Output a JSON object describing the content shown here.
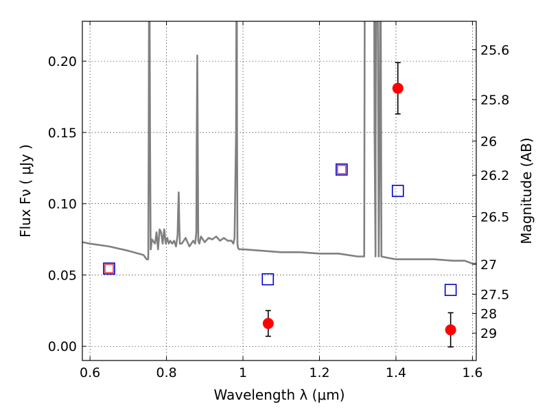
{
  "chart_data": {
    "type": "scatter",
    "title": "",
    "xlabel": "Wavelength  λ (μm)",
    "ylabel": "Flux  Fν  ( μJy )",
    "ylabel_right": "Magnitude (AB)",
    "xlim": [
      0.58,
      1.61
    ],
    "ylim": [
      -0.01,
      0.228
    ],
    "xticks": [
      0.6,
      0.8,
      1.0,
      1.2,
      1.4,
      1.6
    ],
    "xtick_labels": [
      "0.6",
      "0.8",
      "1",
      "1.2",
      "1.4",
      "1.6"
    ],
    "yticks": [
      0.0,
      0.05,
      0.1,
      0.15,
      0.2
    ],
    "ytick_labels": [
      "0.00",
      "0.05",
      "0.10",
      "0.15",
      "0.20"
    ],
    "right_ticks": [
      {
        "label": "25.6",
        "flux": 0.208
      },
      {
        "label": "25.8",
        "flux": 0.173
      },
      {
        "label": "26",
        "flux": 0.144
      },
      {
        "label": "26.2",
        "flux": 0.12
      },
      {
        "label": "26.5",
        "flux": 0.091
      },
      {
        "label": "27",
        "flux": 0.0575
      },
      {
        "label": "27.5",
        "flux": 0.0365
      },
      {
        "label": "28",
        "flux": 0.023
      },
      {
        "label": "29",
        "flux": 0.0092
      }
    ],
    "grid": true,
    "series": [
      {
        "kind": "line",
        "color": "#808080",
        "x": [
          0.58,
          0.6,
          0.65,
          0.7,
          0.74,
          0.748,
          0.752,
          0.7525,
          0.7535,
          0.755,
          0.757,
          0.7585,
          0.759,
          0.762,
          0.77,
          0.774,
          0.778,
          0.782,
          0.786,
          0.79,
          0.794,
          0.798,
          0.802,
          0.806,
          0.81,
          0.815,
          0.82,
          0.825,
          0.829,
          0.8305,
          0.832,
          0.8335,
          0.835,
          0.84,
          0.85,
          0.86,
          0.87,
          0.875,
          0.878,
          0.879,
          0.8805,
          0.882,
          0.883,
          0.886,
          0.89,
          0.9,
          0.91,
          0.92,
          0.93,
          0.94,
          0.95,
          0.96,
          0.97,
          0.975,
          0.978,
          0.982,
          0.9835,
          0.9845,
          0.9855,
          0.987,
          0.99,
          1.0,
          1.05,
          1.1,
          1.15,
          1.2,
          1.25,
          1.3,
          1.317,
          1.319,
          1.322,
          1.34,
          1.3425,
          1.344,
          1.3465,
          1.347,
          1.3485,
          1.35,
          1.3515,
          1.353,
          1.355,
          1.3575,
          1.3595,
          1.362,
          1.38,
          1.4,
          1.45,
          1.5,
          1.55,
          1.58,
          1.6,
          1.61
        ],
        "y": [
          0.073,
          0.072,
          0.07,
          0.067,
          0.064,
          0.061,
          0.061,
          0.065,
          0.15,
          0.31,
          0.15,
          0.068,
          0.068,
          0.075,
          0.072,
          0.08,
          0.068,
          0.082,
          0.08,
          0.072,
          0.082,
          0.072,
          0.076,
          0.072,
          0.074,
          0.072,
          0.074,
          0.07,
          0.078,
          0.095,
          0.108,
          0.085,
          0.072,
          0.072,
          0.076,
          0.07,
          0.074,
          0.072,
          0.08,
          0.14,
          0.204,
          0.13,
          0.074,
          0.072,
          0.077,
          0.073,
          0.076,
          0.075,
          0.077,
          0.074,
          0.076,
          0.074,
          0.074,
          0.072,
          0.076,
          0.15,
          0.31,
          0.15,
          0.072,
          0.069,
          0.068,
          0.068,
          0.067,
          0.066,
          0.066,
          0.065,
          0.065,
          0.063,
          0.063,
          0.31,
          0.31,
          0.31,
          0.31,
          0.15,
          0.063,
          0.15,
          0.31,
          0.31,
          0.31,
          0.2,
          0.063,
          0.15,
          0.31,
          0.063,
          0.062,
          0.061,
          0.061,
          0.061,
          0.06,
          0.06,
          0.058,
          0.058
        ]
      },
      {
        "kind": "points",
        "marker": "circle",
        "color": "#ff0000",
        "errcolor": "#000000",
        "x": [
          1.066,
          1.405,
          1.543
        ],
        "y": [
          0.016,
          0.181,
          0.0115
        ],
        "yerr": [
          0.009,
          0.018,
          0.012
        ]
      },
      {
        "kind": "points",
        "marker": "square-open",
        "color": "#0000cc",
        "x": [
          0.65,
          1.065,
          1.258,
          1.405,
          1.543
        ],
        "y": [
          0.0545,
          0.047,
          0.124,
          0.109,
          0.0395
        ]
      },
      {
        "kind": "points",
        "marker": "square-open-small",
        "color": "#ff0000",
        "x": [
          0.65,
          1.258
        ],
        "y": [
          0.0545,
          0.124
        ]
      }
    ]
  }
}
